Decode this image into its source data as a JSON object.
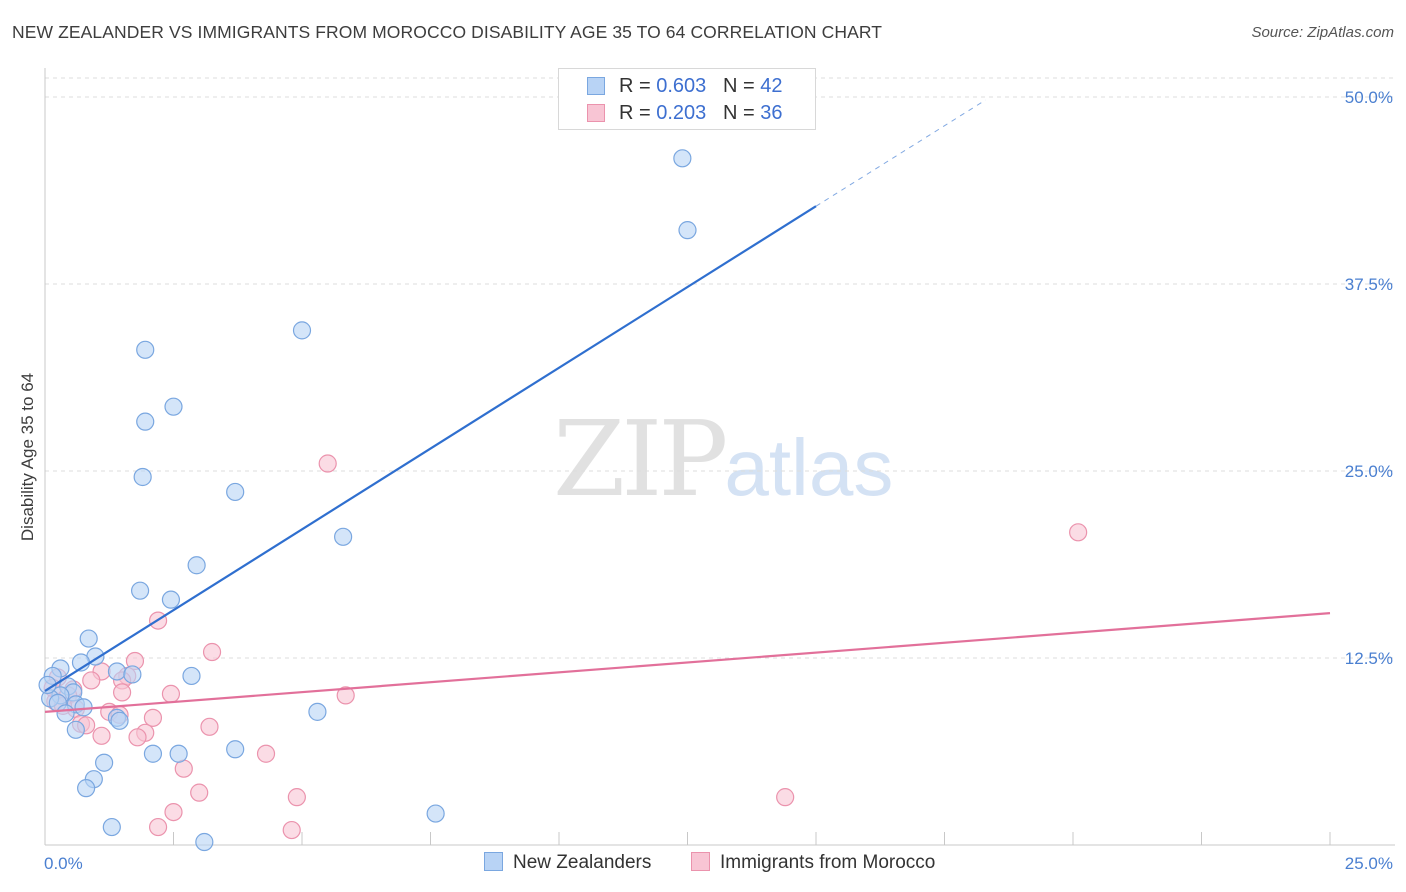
{
  "header": {
    "title": "NEW ZEALANDER VS IMMIGRANTS FROM MOROCCO DISABILITY AGE 35 TO 64 CORRELATION CHART",
    "source": "Source: ZipAtlas.com"
  },
  "watermark": {
    "zip": "ZIP",
    "atlas": "atlas"
  },
  "legend": {
    "rows": [
      {
        "r_label": "R = ",
        "r_value": "0.603",
        "n_label": "N = ",
        "n_value": "42"
      },
      {
        "r_label": "R = ",
        "r_value": "0.203",
        "n_label": "N = ",
        "n_value": "36"
      }
    ]
  },
  "bottom_legend": {
    "series1": "New Zealanders",
    "series2": "Immigrants from Morocco"
  },
  "colors": {
    "blue_fill": "#b8d3f5",
    "blue_stroke": "#7aa7e0",
    "blue_line": "#2f6fcf",
    "pink_fill": "#f8c5d4",
    "pink_stroke": "#eb93ad",
    "pink_line": "#e2709a",
    "tick_text": "#4a7fd0",
    "grid": "#dddddd"
  },
  "chart_data": {
    "type": "scatter",
    "title": "NEW ZEALANDER VS IMMIGRANTS FROM MOROCCO DISABILITY AGE 35 TO 64 CORRELATION CHART",
    "xlabel": "",
    "ylabel": "Disability Age 35 to 64",
    "xlim": [
      0,
      25
    ],
    "ylim": [
      0,
      50
    ],
    "x_tick_labels": [
      "0.0%",
      "25.0%"
    ],
    "y_ticks": [
      12.5,
      25.0,
      37.5,
      50.0
    ],
    "y_tick_labels": [
      "12.5%",
      "25.0%",
      "37.5%",
      "50.0%"
    ],
    "grid": true,
    "legend_position": "top-center",
    "series": [
      {
        "name": "New Zealanders",
        "r": 0.603,
        "n": 42,
        "trend": {
          "x0": 0.0,
          "y0": 10.3,
          "x1": 15.0,
          "y1": 42.7,
          "dashed_to_x": 18.3,
          "dashed_to_y": 49.8
        },
        "points": [
          [
            12.4,
            45.9
          ],
          [
            12.5,
            41.1
          ],
          [
            5.0,
            34.4
          ],
          [
            1.95,
            33.1
          ],
          [
            2.5,
            29.3
          ],
          [
            1.95,
            28.3
          ],
          [
            1.9,
            24.6
          ],
          [
            3.7,
            23.6
          ],
          [
            5.8,
            20.6
          ],
          [
            2.95,
            18.7
          ],
          [
            1.85,
            17.0
          ],
          [
            2.45,
            16.4
          ],
          [
            0.85,
            13.8
          ],
          [
            0.98,
            12.6
          ],
          [
            0.7,
            12.2
          ],
          [
            0.3,
            11.8
          ],
          [
            1.4,
            11.6
          ],
          [
            0.15,
            11.3
          ],
          [
            1.7,
            11.4
          ],
          [
            2.85,
            11.3
          ],
          [
            0.45,
            10.6
          ],
          [
            0.55,
            10.2
          ],
          [
            0.3,
            10.0
          ],
          [
            0.1,
            9.8
          ],
          [
            0.25,
            9.5
          ],
          [
            0.6,
            9.4
          ],
          [
            0.75,
            9.2
          ],
          [
            0.4,
            8.8
          ],
          [
            1.4,
            8.5
          ],
          [
            1.45,
            8.3
          ],
          [
            0.6,
            7.7
          ],
          [
            5.3,
            8.9
          ],
          [
            2.1,
            6.1
          ],
          [
            2.6,
            6.1
          ],
          [
            3.7,
            6.4
          ],
          [
            1.15,
            5.5
          ],
          [
            0.95,
            4.4
          ],
          [
            0.8,
            3.8
          ],
          [
            7.6,
            2.1
          ],
          [
            1.3,
            1.2
          ],
          [
            3.1,
            0.2
          ],
          [
            0.05,
            10.7
          ]
        ]
      },
      {
        "name": "Immigrants from Morocco",
        "r": 0.203,
        "n": 36,
        "trend": {
          "x0": 0.0,
          "y0": 8.9,
          "x1": 25.0,
          "y1": 15.5
        },
        "points": [
          [
            5.5,
            25.5
          ],
          [
            20.1,
            20.9
          ],
          [
            2.2,
            15.0
          ],
          [
            3.25,
            12.9
          ],
          [
            1.75,
            12.3
          ],
          [
            1.1,
            11.6
          ],
          [
            1.6,
            11.3
          ],
          [
            0.9,
            11.0
          ],
          [
            1.5,
            11.0
          ],
          [
            0.25,
            11.2
          ],
          [
            0.55,
            10.4
          ],
          [
            1.5,
            10.2
          ],
          [
            0.45,
            10.0
          ],
          [
            2.45,
            10.1
          ],
          [
            5.85,
            10.0
          ],
          [
            0.2,
            9.6
          ],
          [
            0.6,
            9.1
          ],
          [
            1.25,
            8.9
          ],
          [
            1.45,
            8.7
          ],
          [
            2.1,
            8.5
          ],
          [
            0.7,
            8.1
          ],
          [
            0.8,
            8.0
          ],
          [
            3.2,
            7.9
          ],
          [
            1.95,
            7.5
          ],
          [
            1.1,
            7.3
          ],
          [
            1.8,
            7.2
          ],
          [
            4.3,
            6.1
          ],
          [
            2.7,
            5.1
          ],
          [
            3.0,
            3.5
          ],
          [
            4.9,
            3.2
          ],
          [
            14.4,
            3.2
          ],
          [
            2.5,
            2.2
          ],
          [
            2.2,
            1.2
          ],
          [
            4.8,
            1.0
          ],
          [
            0.35,
            9.3
          ],
          [
            0.15,
            10.5
          ]
        ]
      }
    ]
  }
}
